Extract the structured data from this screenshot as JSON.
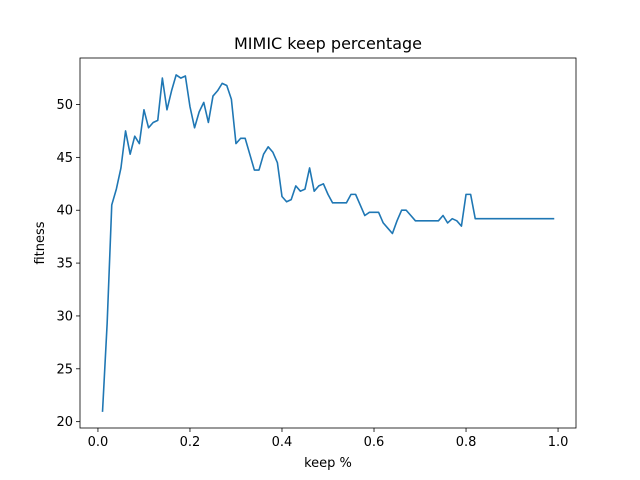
{
  "chart_data": {
    "type": "line",
    "title": "MIMIC keep percentage",
    "xlabel": "keep %",
    "ylabel": "fitness",
    "xlim": [
      -0.039,
      1.039
    ],
    "ylim": [
      19.4,
      54.4
    ],
    "xticks": [
      0.0,
      0.2,
      0.4,
      0.6,
      0.8,
      1.0
    ],
    "xtick_labels": [
      "0.0",
      "0.2",
      "0.4",
      "0.6",
      "0.8",
      "1.0"
    ],
    "yticks": [
      20,
      25,
      30,
      35,
      40,
      45,
      50
    ],
    "ytick_labels": [
      "20",
      "25",
      "30",
      "35",
      "40",
      "45",
      "50"
    ],
    "grid": false,
    "series": [
      {
        "color": "#1f77b4",
        "x": [
          0.01,
          0.02,
          0.03,
          0.04,
          0.05,
          0.06,
          0.07,
          0.08,
          0.09,
          0.1,
          0.11,
          0.12,
          0.13,
          0.14,
          0.15,
          0.16,
          0.17,
          0.18,
          0.19,
          0.2,
          0.21,
          0.22,
          0.23,
          0.24,
          0.25,
          0.26,
          0.27,
          0.28,
          0.29,
          0.3,
          0.31,
          0.32,
          0.33,
          0.34,
          0.35,
          0.36,
          0.37,
          0.38,
          0.39,
          0.4,
          0.41,
          0.42,
          0.43,
          0.44,
          0.45,
          0.46,
          0.47,
          0.48,
          0.49,
          0.5,
          0.51,
          0.52,
          0.53,
          0.54,
          0.55,
          0.56,
          0.57,
          0.58,
          0.59,
          0.6,
          0.61,
          0.62,
          0.63,
          0.64,
          0.65,
          0.66,
          0.67,
          0.68,
          0.69,
          0.7,
          0.71,
          0.72,
          0.73,
          0.74,
          0.75,
          0.76,
          0.77,
          0.78,
          0.79,
          0.8,
          0.81,
          0.82,
          0.83,
          0.84,
          0.85,
          0.86,
          0.87,
          0.88,
          0.89,
          0.9,
          0.91,
          0.92,
          0.93,
          0.94,
          0.95,
          0.96,
          0.97,
          0.98,
          0.99
        ],
        "y": [
          21.0,
          29.3,
          40.5,
          42.0,
          44.0,
          47.5,
          45.3,
          47.0,
          46.3,
          49.5,
          47.8,
          48.3,
          48.5,
          52.5,
          49.5,
          51.3,
          52.8,
          52.5,
          52.7,
          49.8,
          47.8,
          49.3,
          50.2,
          48.3,
          50.8,
          51.3,
          52.0,
          51.8,
          50.5,
          46.3,
          46.8,
          46.8,
          45.3,
          43.8,
          43.8,
          45.3,
          46.0,
          45.5,
          44.5,
          41.3,
          40.8,
          41.0,
          42.3,
          41.8,
          42.0,
          44.0,
          41.8,
          42.3,
          42.5,
          41.5,
          40.7,
          40.7,
          40.7,
          40.7,
          41.5,
          41.5,
          40.5,
          39.5,
          39.8,
          39.8,
          39.8,
          38.8,
          38.3,
          37.8,
          39.0,
          40.0,
          40.0,
          39.5,
          39.0,
          39.0,
          39.0,
          39.0,
          39.0,
          39.0,
          39.5,
          38.8,
          39.2,
          39.0,
          38.5,
          41.5,
          41.5,
          39.2,
          39.2,
          39.2,
          39.2,
          39.2,
          39.2,
          39.2,
          39.2,
          39.2,
          39.2,
          39.2,
          39.2,
          39.2,
          39.2,
          39.2,
          39.2,
          39.2,
          39.2
        ]
      }
    ]
  }
}
